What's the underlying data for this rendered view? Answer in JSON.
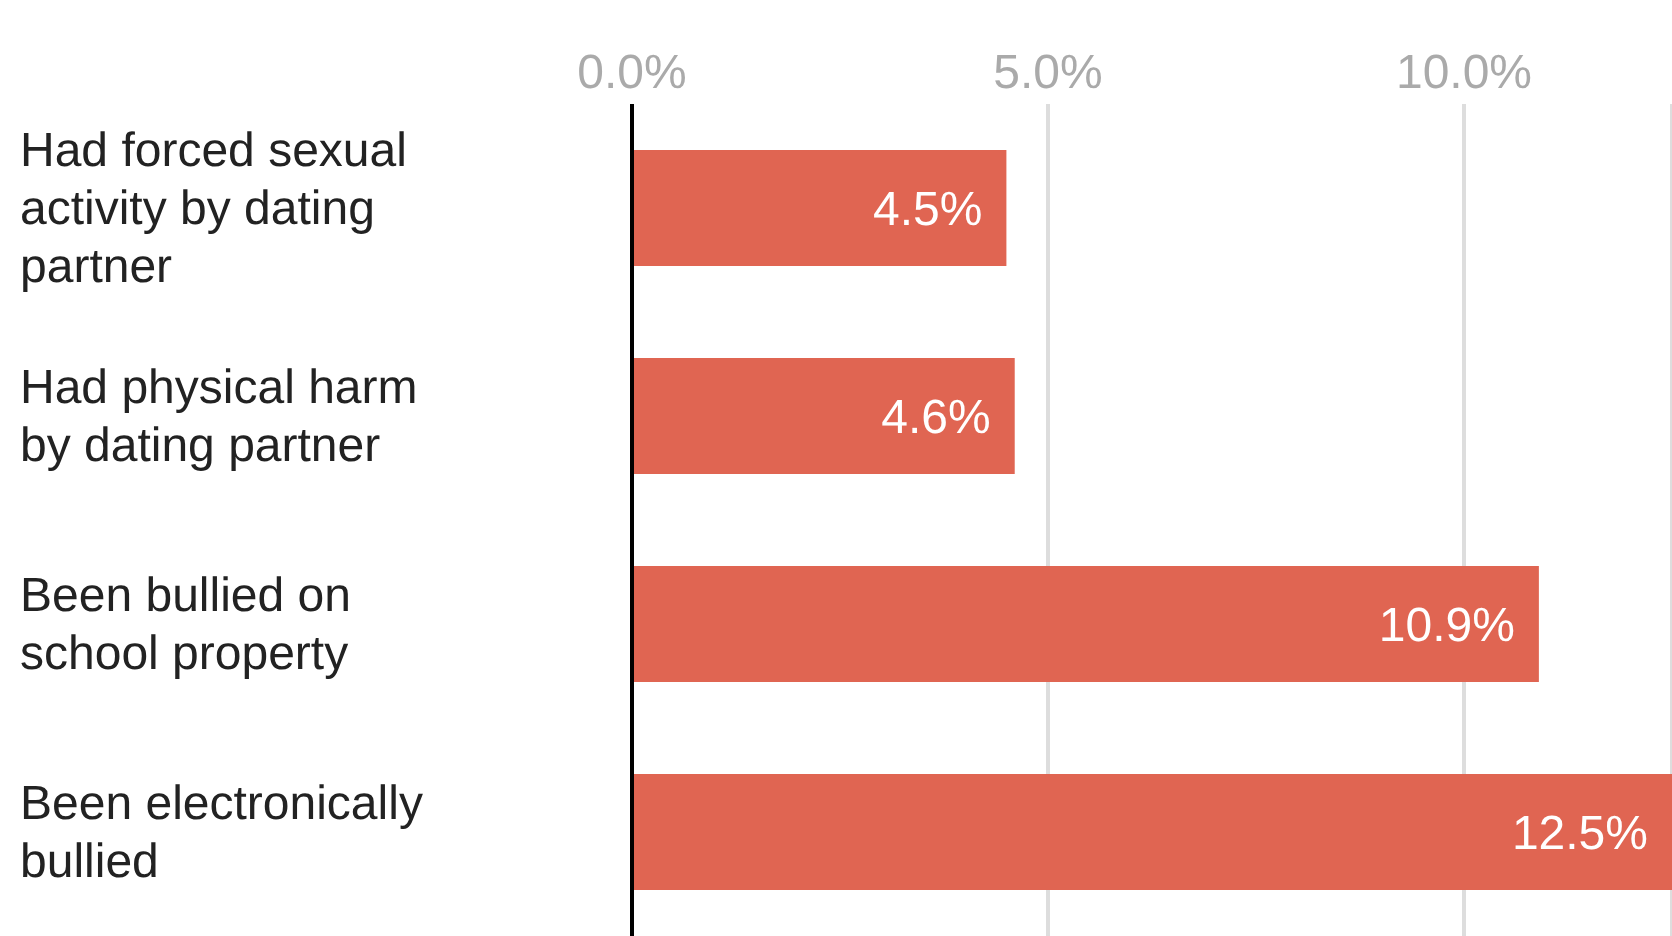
{
  "chart_data": {
    "type": "bar",
    "orientation": "horizontal",
    "categories": [
      "Had forced sexual activity by dating partner",
      "Had physical harm by dating partner",
      "Been bullied on school property",
      "Been electronically bullied"
    ],
    "values": [
      4.5,
      4.6,
      10.9,
      12.5
    ],
    "color": "#e06552",
    "value_labels": [
      "4.5%",
      "4.6%",
      "10.9%",
      "12.5%"
    ],
    "xlim": [
      0,
      12.5
    ],
    "xticks": [
      {
        "value": 0,
        "label": "0.0%"
      },
      {
        "value": 5,
        "label": "5.0%"
      },
      {
        "value": 10,
        "label": "10.0%"
      }
    ],
    "grid": "x"
  }
}
